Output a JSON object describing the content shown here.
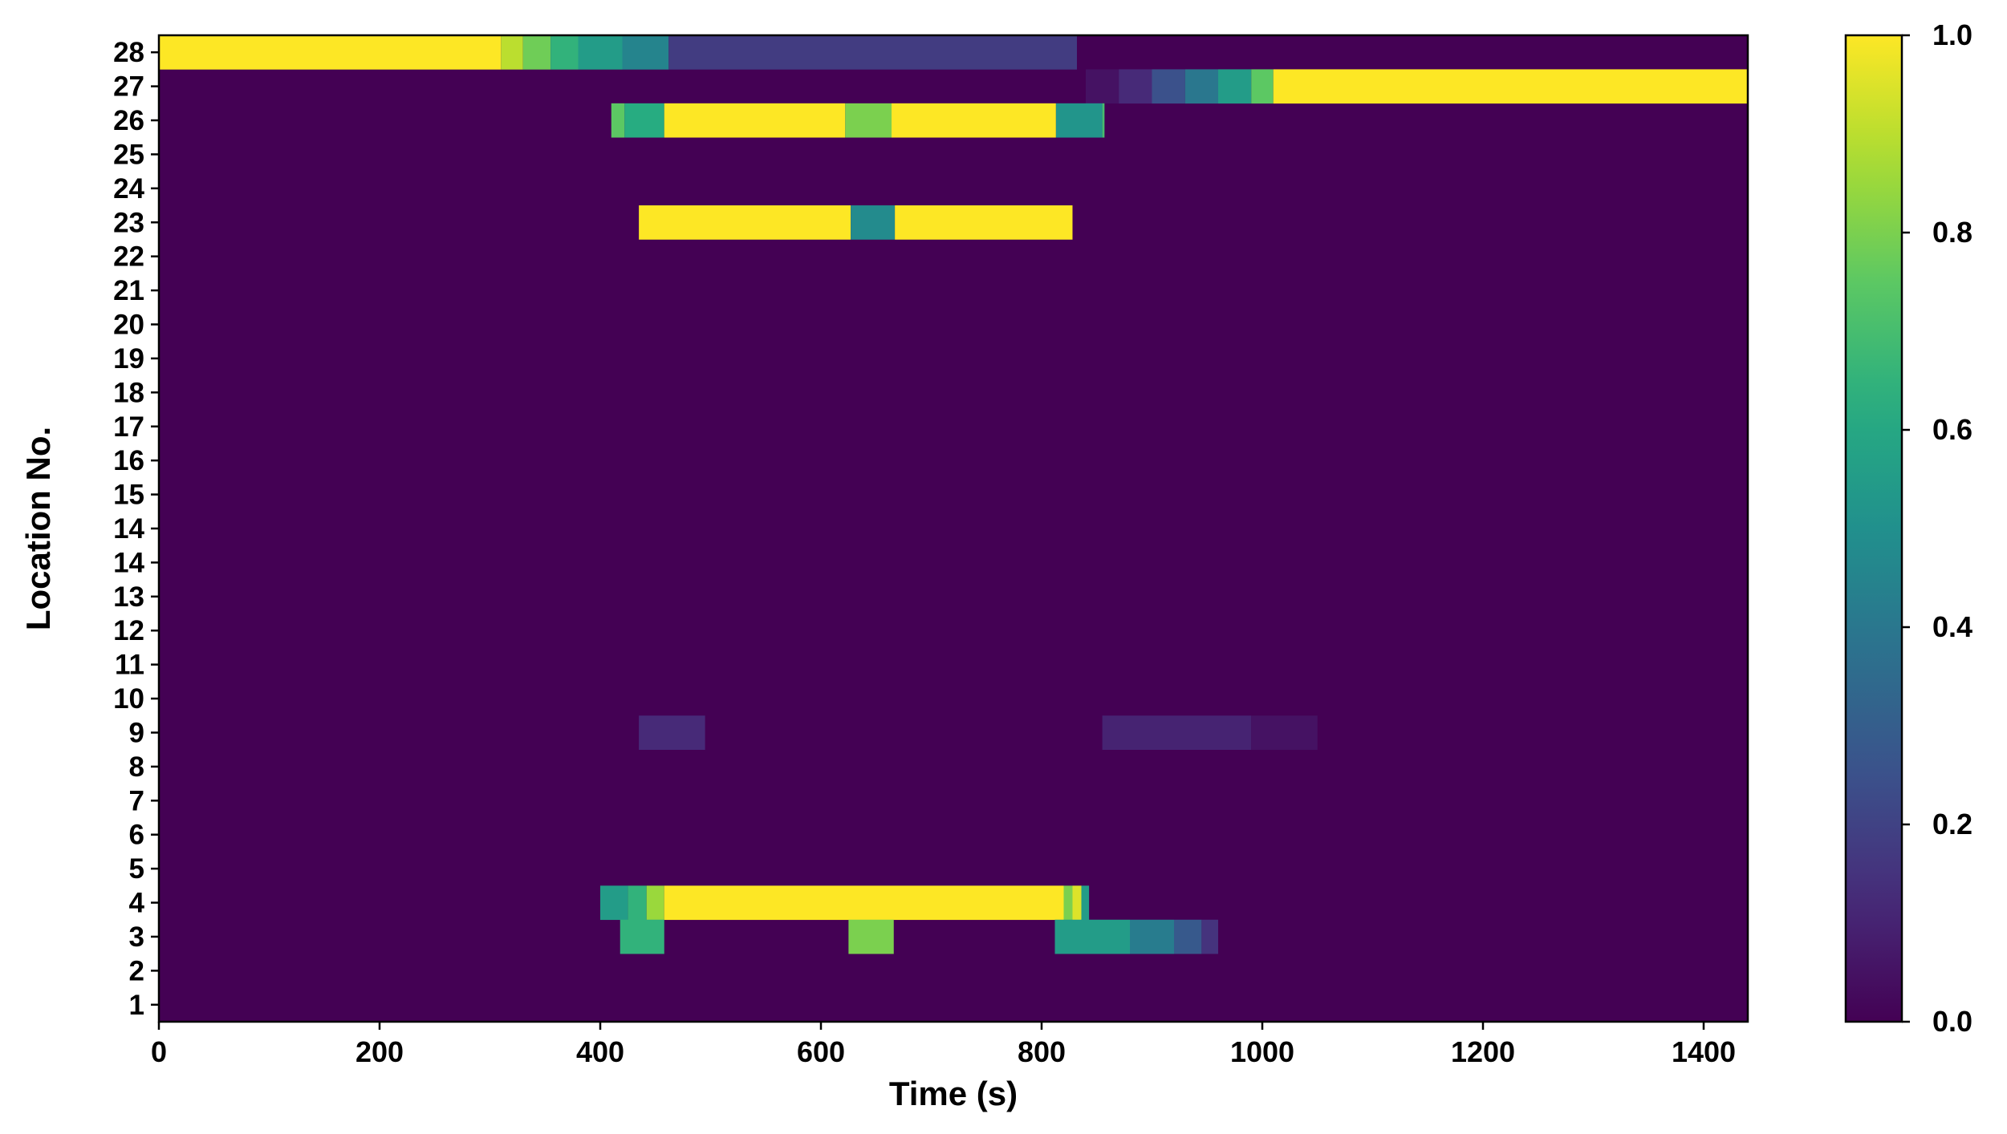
{
  "chart_data": {
    "type": "heatmap",
    "xlabel": "Time (s)",
    "ylabel": "Location No.",
    "xlim": [
      0,
      1440
    ],
    "x_ticks": [
      "0",
      "200",
      "400",
      "600",
      "800",
      "1000",
      "1200",
      "1400"
    ],
    "x_tick_values": [
      0,
      200,
      400,
      600,
      800,
      1000,
      1200,
      1400
    ],
    "y_tick_labels": [
      "1",
      "2",
      "3",
      "4",
      "5",
      "6",
      "7",
      "8",
      "9",
      "10",
      "11",
      "12",
      "13",
      "14",
      "14",
      "15",
      "16",
      "17",
      "18",
      "19",
      "20",
      "21",
      "22",
      "23",
      "24",
      "25",
      "26",
      "27",
      "28"
    ],
    "colorbar": {
      "range": [
        0.0,
        1.0
      ],
      "ticks": [
        "0.0",
        "0.2",
        "0.4",
        "0.6",
        "0.8",
        "1.0"
      ],
      "tick_values": [
        0.0,
        0.2,
        0.4,
        0.6,
        0.8,
        1.0
      ],
      "colormap": "viridis"
    },
    "background_value": 0.0,
    "rows": [
      {
        "location": "28",
        "segments": [
          {
            "start": 0,
            "end": 310,
            "value": 1.0
          },
          {
            "start": 310,
            "end": 330,
            "value": 0.9
          },
          {
            "start": 330,
            "end": 355,
            "value": 0.78
          },
          {
            "start": 355,
            "end": 380,
            "value": 0.65
          },
          {
            "start": 380,
            "end": 420,
            "value": 0.55
          },
          {
            "start": 420,
            "end": 462,
            "value": 0.45
          },
          {
            "start": 462,
            "end": 832,
            "value": 0.18
          }
        ]
      },
      {
        "location": "27",
        "segments": [
          {
            "start": 840,
            "end": 870,
            "value": 0.05
          },
          {
            "start": 870,
            "end": 900,
            "value": 0.12
          },
          {
            "start": 900,
            "end": 930,
            "value": 0.25
          },
          {
            "start": 930,
            "end": 960,
            "value": 0.4
          },
          {
            "start": 960,
            "end": 990,
            "value": 0.55
          },
          {
            "start": 990,
            "end": 1010,
            "value": 0.75
          },
          {
            "start": 1010,
            "end": 1440,
            "value": 1.0
          }
        ]
      },
      {
        "location": "26",
        "segments": [
          {
            "start": 410,
            "end": 422,
            "value": 0.75
          },
          {
            "start": 422,
            "end": 458,
            "value": 0.62
          },
          {
            "start": 458,
            "end": 622,
            "value": 1.0
          },
          {
            "start": 622,
            "end": 664,
            "value": 0.8
          },
          {
            "start": 664,
            "end": 813,
            "value": 1.0
          },
          {
            "start": 813,
            "end": 855,
            "value": 0.52
          },
          {
            "start": 855,
            "end": 857,
            "value": 0.7
          }
        ]
      },
      {
        "location": "23",
        "segments": [
          {
            "start": 435,
            "end": 627,
            "value": 1.0
          },
          {
            "start": 627,
            "end": 667,
            "value": 0.48
          },
          {
            "start": 667,
            "end": 828,
            "value": 1.0
          }
        ]
      },
      {
        "location": "9",
        "segments": [
          {
            "start": 435,
            "end": 495,
            "value": 0.12
          },
          {
            "start": 855,
            "end": 990,
            "value": 0.1
          },
          {
            "start": 990,
            "end": 1050,
            "value": 0.05
          }
        ]
      },
      {
        "location": "4",
        "segments": [
          {
            "start": 400,
            "end": 425,
            "value": 0.55
          },
          {
            "start": 425,
            "end": 442,
            "value": 0.65
          },
          {
            "start": 442,
            "end": 458,
            "value": 0.85
          },
          {
            "start": 458,
            "end": 820,
            "value": 1.0
          },
          {
            "start": 820,
            "end": 828,
            "value": 0.8
          },
          {
            "start": 828,
            "end": 836,
            "value": 0.95
          },
          {
            "start": 836,
            "end": 843,
            "value": 0.55
          }
        ]
      },
      {
        "location": "3",
        "segments": [
          {
            "start": 418,
            "end": 458,
            "value": 0.65
          },
          {
            "start": 625,
            "end": 666,
            "value": 0.8
          },
          {
            "start": 812,
            "end": 880,
            "value": 0.55
          },
          {
            "start": 880,
            "end": 920,
            "value": 0.42
          },
          {
            "start": 920,
            "end": 945,
            "value": 0.28
          },
          {
            "start": 945,
            "end": 960,
            "value": 0.15
          }
        ]
      }
    ]
  }
}
